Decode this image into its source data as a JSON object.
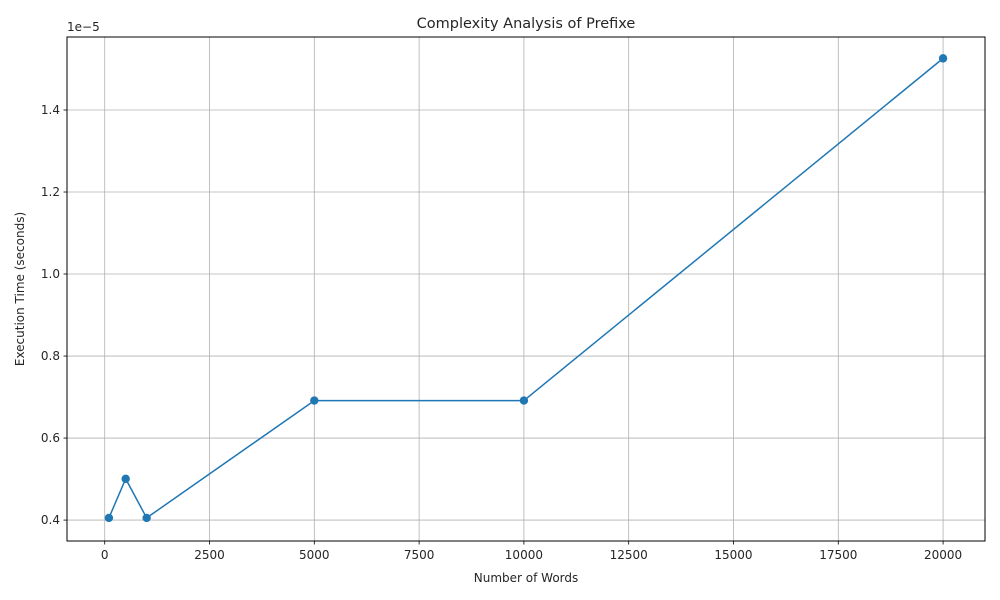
{
  "chart_data": {
    "type": "line",
    "title": "Complexity Analysis of Prefixe",
    "xlabel": "Number of Words",
    "ylabel": "Execution Time (seconds)",
    "y_offset_label": "1e−5",
    "x": [
      100,
      500,
      1000,
      5000,
      10000,
      20000
    ],
    "series": [
      {
        "values": [
          4.0531e-06,
          5.0068e-06,
          4.0531e-06,
          6.9141e-06,
          6.9141e-06,
          1.52588e-05
        ]
      }
    ],
    "xlim": [
      -900,
      21000
    ],
    "ylim": [
      3.49e-06,
      1.578e-05
    ],
    "x_ticks": [
      0,
      2500,
      5000,
      7500,
      10000,
      12500,
      15000,
      17500,
      20000
    ],
    "x_tick_labels": [
      "0",
      "2500",
      "5000",
      "7500",
      "10000",
      "12500",
      "15000",
      "17500",
      "20000"
    ],
    "y_ticks": [
      4e-06,
      6e-06,
      8e-06,
      1e-05,
      1.2e-05,
      1.4e-05
    ],
    "y_tick_labels": [
      "0.4",
      "0.6",
      "0.8",
      "1.0",
      "1.2",
      "1.4"
    ],
    "grid": true,
    "marker": "circle",
    "colors": {
      "line": "#1f77b4",
      "grid": "#b0b0b0",
      "axis": "#000000",
      "text": "#262626"
    }
  }
}
